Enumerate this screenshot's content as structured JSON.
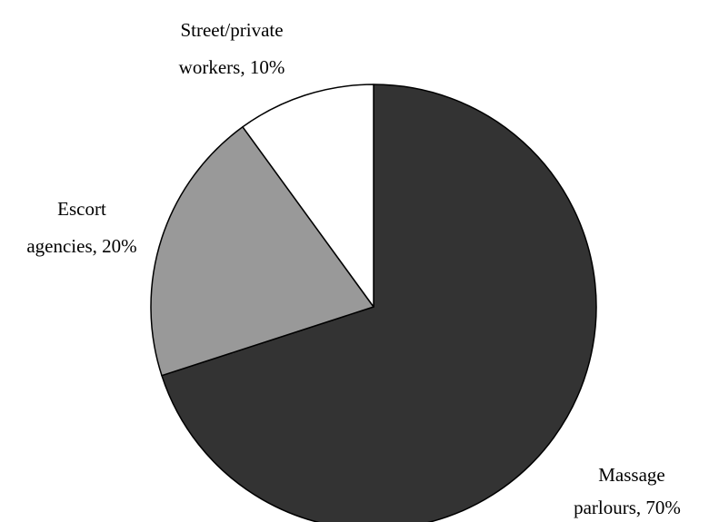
{
  "chart_data": {
    "type": "pie",
    "categories": [
      "Massage parlours",
      "Escort agencies",
      "Street/private workers"
    ],
    "values": [
      70,
      20,
      10
    ],
    "labels": [
      [
        "Massage",
        "parlours, 70%"
      ],
      [
        "Escort",
        "agencies, 20%"
      ],
      [
        "Street/private",
        "workers, 10%"
      ]
    ],
    "start_angle_deg": 0,
    "direction": "clockwise",
    "legend": "none",
    "colors": [
      "#333333",
      "#999999",
      "#ffffff"
    ],
    "stroke_color": "#000000"
  }
}
